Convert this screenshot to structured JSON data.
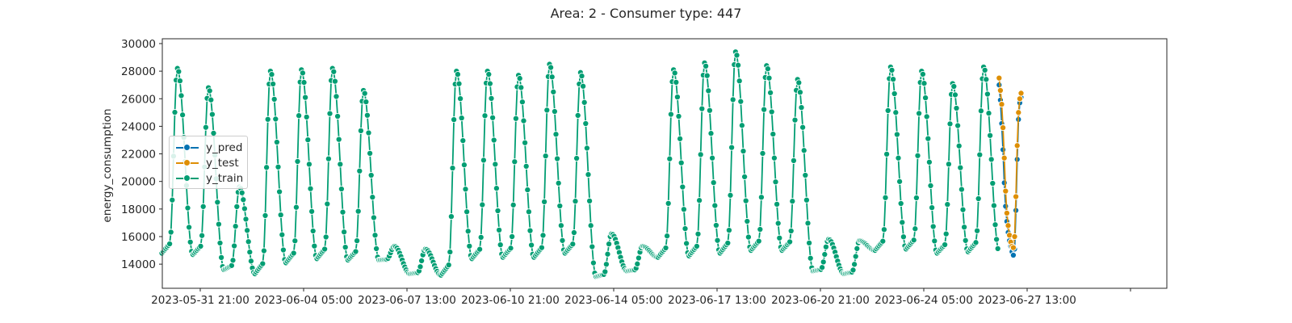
{
  "chart_data": {
    "type": "line",
    "title": "Area: 2 - Consumer type: 447",
    "xlabel": "",
    "ylabel": "energy_consumption",
    "ylim": [
      12250,
      30350
    ],
    "yticks": [
      14000,
      16000,
      18000,
      20000,
      22000,
      24000,
      26000,
      28000,
      30000
    ],
    "x_tick_labels": [
      "2023-05-31 21:00",
      "2023-06-04 05:00",
      "2023-06-07 13:00",
      "2023-06-10 21:00",
      "2023-06-14 05:00",
      "2023-06-17 13:00",
      "2023-06-20 21:00",
      "2023-06-24 05:00",
      "2023-06-27 13:00",
      ""
    ],
    "grid": false,
    "legend_position": "center-left",
    "x_start": "2023-06-01 00:00",
    "step_hours": 1,
    "series": [
      {
        "name": "y_train",
        "color": "#029e73",
        "start_hour": 0,
        "peaks": [
          28200,
          26800,
          19600,
          28000,
          28100,
          28200,
          26600,
          15300,
          15100,
          28000,
          28000,
          27700,
          28500,
          27900,
          16200,
          15300,
          28100,
          28600,
          29400,
          28400,
          27400,
          15800,
          15700,
          28300,
          28000,
          27100,
          28300
        ],
        "troughs": [
          14800,
          14700,
          13600,
          13300,
          14100,
          14400,
          14300,
          14300,
          13300,
          13200,
          14400,
          14500,
          14500,
          14800,
          13100,
          13500,
          14500,
          14600,
          14800,
          15000,
          15000,
          13500,
          13300,
          15000,
          15100,
          14800,
          14900
        ]
      },
      {
        "name": "y_test",
        "color": "#de8f05",
        "start_hour": 648,
        "values": [
          27500,
          26600,
          25600,
          23900,
          21700,
          19300,
          17700,
          16800,
          16100,
          15600,
          15300,
          15200,
          16000,
          18900,
          22600,
          25000,
          26000,
          26400
        ]
      },
      {
        "name": "y_pred",
        "color": "#0173b2",
        "start_hour": 648,
        "values": [
          27000,
          25900,
          24200,
          22300,
          19900,
          18200,
          17100,
          16300,
          15700,
          15300,
          14900,
          14650,
          15100,
          17900,
          21600,
          24500,
          25700,
          26100
        ]
      }
    ]
  },
  "legend": {
    "items": [
      {
        "name": "y_pred",
        "color": "#0173b2"
      },
      {
        "name": "y_test",
        "color": "#de8f05"
      },
      {
        "name": "y_train",
        "color": "#029e73"
      }
    ]
  }
}
